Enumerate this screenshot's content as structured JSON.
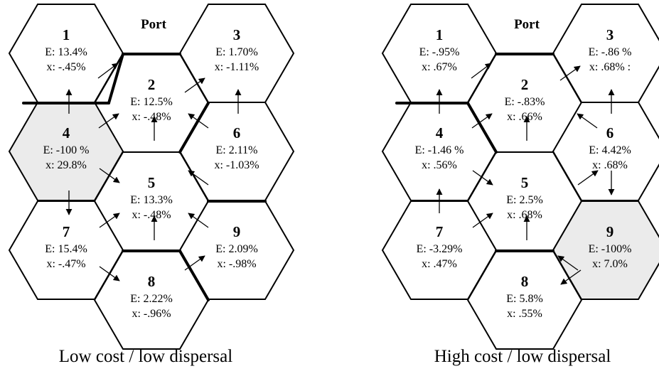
{
  "colors": {
    "stroke": "#000000",
    "cell": "#ffffff",
    "source_cell": "#ebebeb"
  },
  "panels": [
    {
      "caption": "Low cost / low dispersal",
      "port_label": "Port",
      "cells": [
        {
          "id": "1",
          "E": "E: 13.4%",
          "x": "x: -.45%",
          "shaded": false
        },
        {
          "id": "2",
          "E": "E: 12.5%",
          "x": "x: -.48%",
          "shaded": false
        },
        {
          "id": "3",
          "E": "E: 1.70%",
          "x": "x: -1.11%",
          "shaded": false
        },
        {
          "id": "4",
          "E": "E: -100 %",
          "x": "x: 29.8%",
          "shaded": true
        },
        {
          "id": "5",
          "E": "E: 13.3%",
          "x": "x: -.48%",
          "shaded": false
        },
        {
          "id": "6",
          "E": "E: 2.11%",
          "x": "x: -1.03%",
          "shaded": false
        },
        {
          "id": "7",
          "E": "E:  15.4%",
          "x": "x: -.47%",
          "shaded": false
        },
        {
          "id": "8",
          "E": "E: 2.22%",
          "x": "x: -.96%",
          "shaded": false
        },
        {
          "id": "9",
          "E": "E: 2.09%",
          "x": "x: -.98%",
          "shaded": false
        }
      ]
    },
    {
      "caption": "High cost / low dispersal",
      "port_label": "Port",
      "cells": [
        {
          "id": "1",
          "E": "E: -.95%",
          "x": "x:  .67%",
          "shaded": false
        },
        {
          "id": "2",
          "E": "E: -.83%",
          "x": "x:  .66%",
          "shaded": false
        },
        {
          "id": "3",
          "E": "E: -.86 %",
          "x": "x:  .68%  :",
          "shaded": false
        },
        {
          "id": "4",
          "E": "E: -1.46 %",
          "x": "x: .56%",
          "shaded": false
        },
        {
          "id": "5",
          "E": "E: 2.5%",
          "x": "x: .68%",
          "shaded": false
        },
        {
          "id": "6",
          "E": "E: 4.42%",
          "x": "x: .68%",
          "shaded": false
        },
        {
          "id": "7",
          "E": "E:  -3.29%",
          "x": "x: .47%",
          "shaded": false
        },
        {
          "id": "8",
          "E": "E: 5.8%",
          "x": "x: .55%",
          "shaded": false
        },
        {
          "id": "9",
          "E": "E: -100%",
          "x": "x: 7.0%",
          "shaded": true
        }
      ]
    }
  ]
}
